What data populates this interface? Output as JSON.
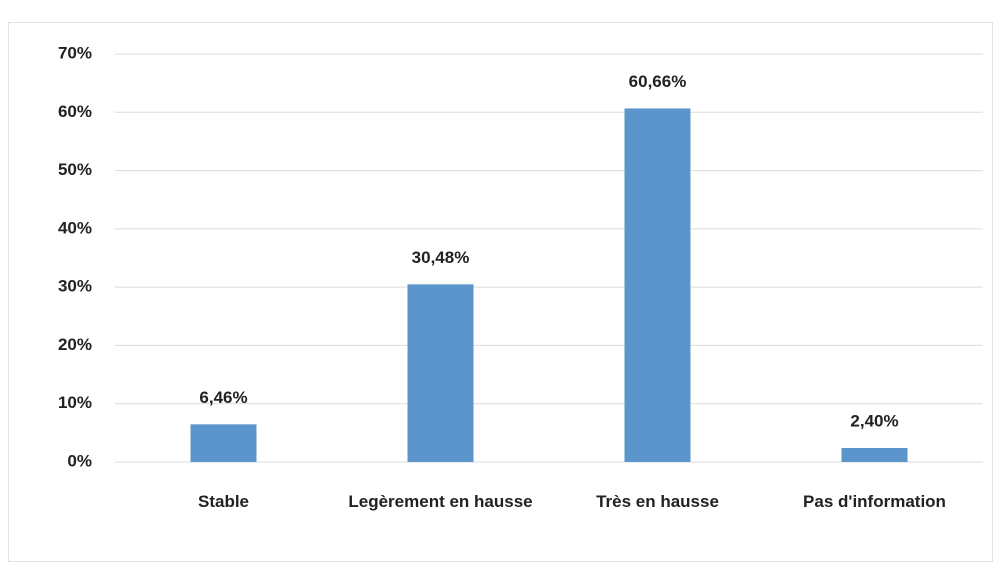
{
  "chart_data": {
    "type": "bar",
    "categories": [
      "Stable",
      "Legèrement en hausse",
      "Très en hausse",
      "Pas d'information"
    ],
    "values": [
      6.46,
      30.48,
      60.66,
      2.4
    ],
    "value_labels": [
      "6,46%",
      "30,48%",
      "60,66%",
      "2,40%"
    ],
    "color": "#5b95cb",
    "ylim": [
      0,
      70
    ],
    "yticks": [
      {
        "value": 0,
        "label": "0%"
      },
      {
        "value": 10,
        "label": "10%"
      },
      {
        "value": 20,
        "label": "20%"
      },
      {
        "value": 30,
        "label": "30%"
      },
      {
        "value": 40,
        "label": "40%"
      },
      {
        "value": 50,
        "label": "50%"
      },
      {
        "value": 60,
        "label": "60%"
      },
      {
        "value": 70,
        "label": "70%"
      }
    ],
    "grid": true
  }
}
